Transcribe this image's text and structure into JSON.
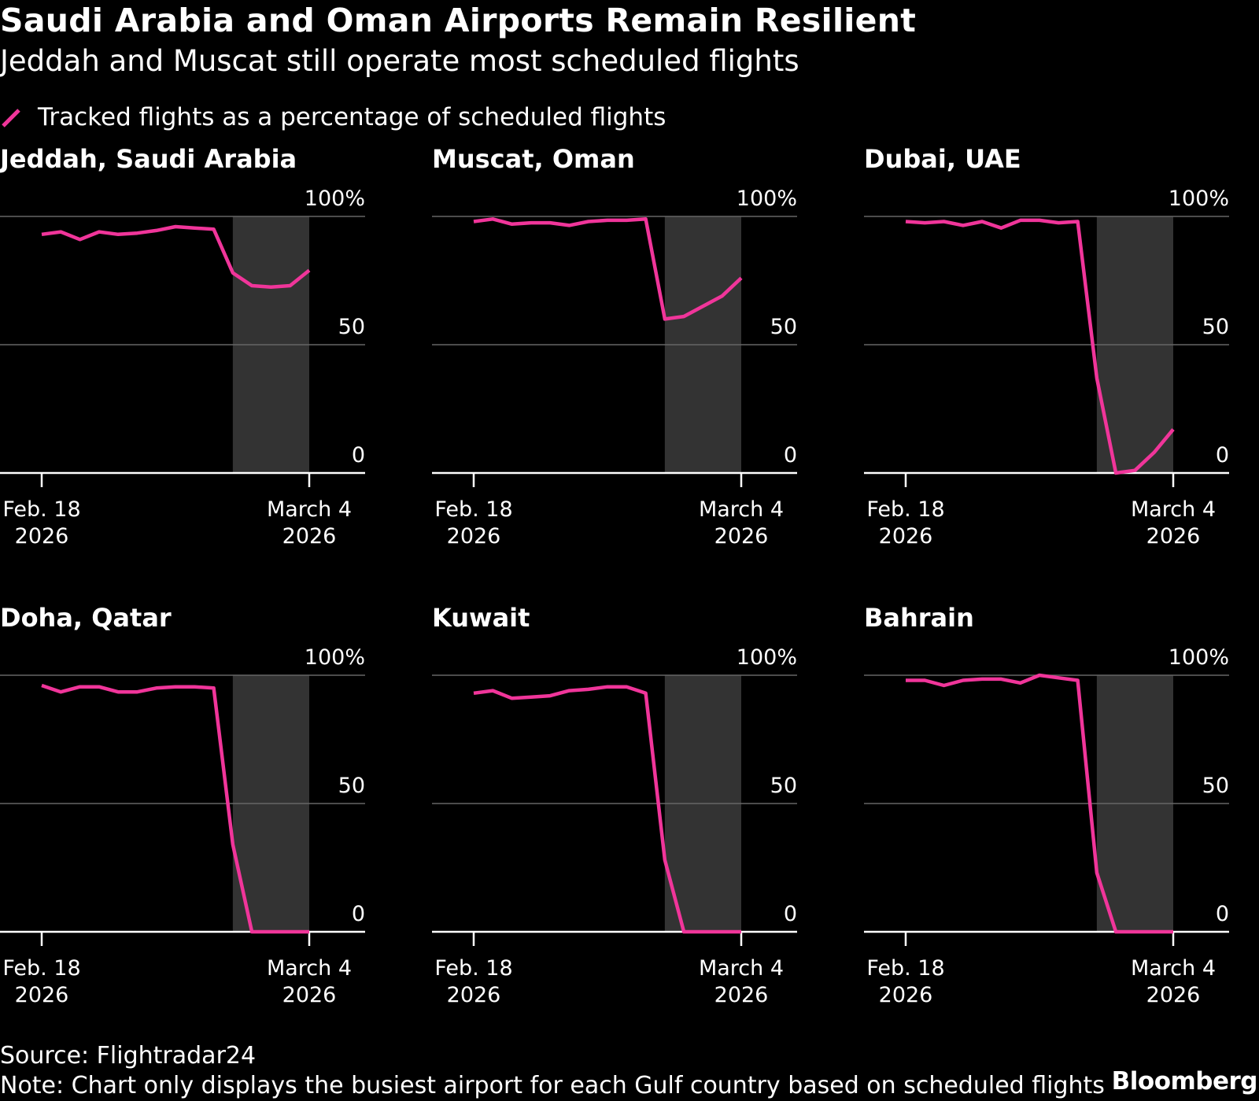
{
  "title": "Saudi Arabia and Oman Airports Remain Resilient",
  "subtitle": "Jeddah and Muscat still operate most scheduled flights",
  "legend": {
    "label": "Tracked flights as a percentage of scheduled flights"
  },
  "colors": {
    "line": "#f0359a",
    "shade": "#333333",
    "grid": "#666666",
    "axis": "#ffffff",
    "background": "#000000"
  },
  "source": "Source: Flightradar24",
  "note": "Note: Chart only displays the busiest airport for each Gulf country based on scheduled flights",
  "brand": "Bloomberg",
  "chart_data": [
    {
      "type": "line",
      "title": "Jeddah, Saudi Arabia",
      "x": [
        "2026-02-18",
        "2026-02-19",
        "2026-02-20",
        "2026-02-21",
        "2026-02-22",
        "2026-02-23",
        "2026-02-24",
        "2026-02-25",
        "2026-02-26",
        "2026-02-27",
        "2026-02-28",
        "2026-03-01",
        "2026-03-02",
        "2026-03-03",
        "2026-03-04"
      ],
      "series": [
        {
          "values": [
            93,
            94,
            91,
            94,
            93,
            93.5,
            94.5,
            96,
            95.5,
            95,
            78,
            73,
            72.5,
            73,
            79
          ]
        }
      ],
      "ylim": [
        0,
        100
      ],
      "yticks": [
        "100%",
        "50",
        "0"
      ],
      "xticks": [
        {
          "line1": "Feb. 18",
          "line2": "2026"
        },
        {
          "line1": "March 4",
          "line2": "2026"
        }
      ],
      "shaded_range": [
        "2026-02-28",
        "2026-03-04"
      ]
    },
    {
      "type": "line",
      "title": "Muscat, Oman",
      "x": [
        "2026-02-18",
        "2026-02-19",
        "2026-02-20",
        "2026-02-21",
        "2026-02-22",
        "2026-02-23",
        "2026-02-24",
        "2026-02-25",
        "2026-02-26",
        "2026-02-27",
        "2026-02-28",
        "2026-03-01",
        "2026-03-02",
        "2026-03-03",
        "2026-03-04"
      ],
      "series": [
        {
          "values": [
            98,
            99,
            97,
            97.5,
            97.5,
            96.5,
            98,
            98.5,
            98.5,
            99,
            60,
            61,
            65,
            69,
            76
          ]
        }
      ],
      "ylim": [
        0,
        100
      ],
      "yticks": [
        "100%",
        "50",
        "0"
      ],
      "xticks": [
        {
          "line1": "Feb. 18",
          "line2": "2026"
        },
        {
          "line1": "March 4",
          "line2": "2026"
        }
      ],
      "shaded_range": [
        "2026-02-28",
        "2026-03-04"
      ]
    },
    {
      "type": "line",
      "title": "Dubai, UAE",
      "x": [
        "2026-02-18",
        "2026-02-19",
        "2026-02-20",
        "2026-02-21",
        "2026-02-22",
        "2026-02-23",
        "2026-02-24",
        "2026-02-25",
        "2026-02-26",
        "2026-02-27",
        "2026-02-28",
        "2026-03-01",
        "2026-03-02",
        "2026-03-03",
        "2026-03-04"
      ],
      "series": [
        {
          "values": [
            98,
            97.5,
            98,
            96.5,
            98,
            95.5,
            98.5,
            98.5,
            97.5,
            98,
            37,
            0,
            1,
            8,
            17
          ]
        }
      ],
      "ylim": [
        0,
        100
      ],
      "yticks": [
        "100%",
        "50",
        "0"
      ],
      "xticks": [
        {
          "line1": "Feb. 18",
          "line2": "2026"
        },
        {
          "line1": "March 4",
          "line2": "2026"
        }
      ],
      "shaded_range": [
        "2026-02-28",
        "2026-03-04"
      ]
    },
    {
      "type": "line",
      "title": "Doha, Qatar",
      "x": [
        "2026-02-18",
        "2026-02-19",
        "2026-02-20",
        "2026-02-21",
        "2026-02-22",
        "2026-02-23",
        "2026-02-24",
        "2026-02-25",
        "2026-02-26",
        "2026-02-27",
        "2026-02-28",
        "2026-03-01",
        "2026-03-02",
        "2026-03-03",
        "2026-03-04"
      ],
      "series": [
        {
          "values": [
            96,
            93.5,
            95.5,
            95.5,
            93.5,
            93.5,
            95,
            95.5,
            95.5,
            95,
            34,
            0,
            0,
            0,
            0
          ]
        }
      ],
      "ylim": [
        0,
        100
      ],
      "yticks": [
        "100%",
        "50",
        "0"
      ],
      "xticks": [
        {
          "line1": "Feb. 18",
          "line2": "2026"
        },
        {
          "line1": "March 4",
          "line2": "2026"
        }
      ],
      "shaded_range": [
        "2026-02-28",
        "2026-03-04"
      ]
    },
    {
      "type": "line",
      "title": "Kuwait",
      "x": [
        "2026-02-18",
        "2026-02-19",
        "2026-02-20",
        "2026-02-21",
        "2026-02-22",
        "2026-02-23",
        "2026-02-24",
        "2026-02-25",
        "2026-02-26",
        "2026-02-27",
        "2026-02-28",
        "2026-03-01",
        "2026-03-02",
        "2026-03-03",
        "2026-03-04"
      ],
      "series": [
        {
          "values": [
            93,
            94,
            91,
            91.5,
            92,
            94,
            94.5,
            95.5,
            95.5,
            93,
            28,
            0,
            0,
            0,
            0
          ]
        }
      ],
      "ylim": [
        0,
        100
      ],
      "yticks": [
        "100%",
        "50",
        "0"
      ],
      "xticks": [
        {
          "line1": "Feb. 18",
          "line2": "2026"
        },
        {
          "line1": "March 4",
          "line2": "2026"
        }
      ],
      "shaded_range": [
        "2026-02-28",
        "2026-03-04"
      ]
    },
    {
      "type": "line",
      "title": "Bahrain",
      "x": [
        "2026-02-18",
        "2026-02-19",
        "2026-02-20",
        "2026-02-21",
        "2026-02-22",
        "2026-02-23",
        "2026-02-24",
        "2026-02-25",
        "2026-02-26",
        "2026-02-27",
        "2026-02-28",
        "2026-03-01",
        "2026-03-02",
        "2026-03-03",
        "2026-03-04"
      ],
      "series": [
        {
          "values": [
            98,
            98,
            96,
            98,
            98.5,
            98.5,
            97,
            100,
            99,
            98,
            23,
            0,
            0,
            0,
            0
          ]
        }
      ],
      "ylim": [
        0,
        100
      ],
      "yticks": [
        "100%",
        "50",
        "0"
      ],
      "xticks": [
        {
          "line1": "Feb. 18",
          "line2": "2026"
        },
        {
          "line1": "March 4",
          "line2": "2026"
        }
      ],
      "shaded_range": [
        "2026-02-28",
        "2026-03-04"
      ]
    }
  ]
}
